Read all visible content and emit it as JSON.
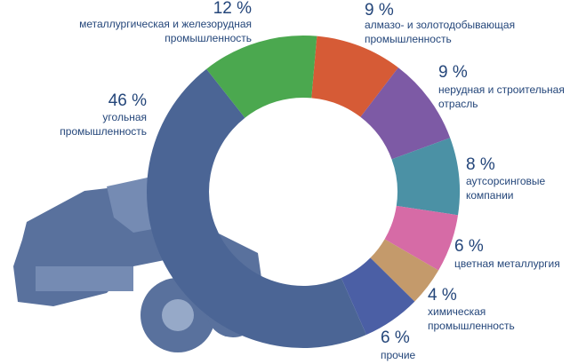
{
  "chart_data": {
    "type": "donut",
    "categories": [
      [
        "алмазо- и золотодобывающая",
        "промышленность"
      ],
      [
        "нерудная и строительная",
        "отрасль"
      ],
      [
        "аутсорсинговые",
        "компании"
      ],
      [
        "цветная металлургия"
      ],
      [
        "химическая",
        "промышленность"
      ],
      [
        "прочие"
      ],
      [
        "угольная",
        "промышленность"
      ],
      [
        "металлургическая и железорудная",
        "промышленность"
      ]
    ],
    "values": [
      9,
      9,
      8,
      6,
      4,
      6,
      46,
      12
    ],
    "value_labels": [
      "9 %",
      "9 %",
      "8 %",
      "6 %",
      "4 %",
      "6 %",
      "46 %",
      "12 %"
    ],
    "colors": [
      "#d65b36",
      "#7d5aa5",
      "#4b91a5",
      "#d66ba6",
      "#c49a6b",
      "#4b5fa5",
      "#4b6595",
      "#4ba84f"
    ]
  }
}
